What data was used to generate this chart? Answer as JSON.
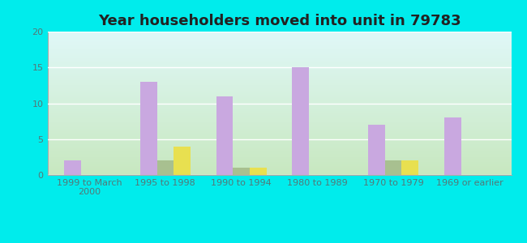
{
  "title": "Year householders moved into unit in 79783",
  "categories": [
    "1999 to March\n2000",
    "1995 to 1998",
    "1990 to 1994",
    "1980 to 1989",
    "1970 to 1979",
    "1969 or earlier"
  ],
  "white_non_hispanic": [
    2,
    13,
    11,
    15,
    7,
    8
  ],
  "other_race": [
    0,
    2,
    1,
    0,
    2,
    0
  ],
  "hispanic_or_latino": [
    0,
    4,
    1,
    0,
    2,
    0
  ],
  "white_color": "#c9a8e0",
  "other_color": "#a8c090",
  "hispanic_color": "#e8e050",
  "background_outer": "#00ecec",
  "bg_top": "#e0f8f8",
  "bg_bottom": "#c8e8c0",
  "grid_color": "#ffffff",
  "ylim": [
    0,
    20
  ],
  "yticks": [
    0,
    5,
    10,
    15,
    20
  ],
  "bar_width": 0.22,
  "title_fontsize": 13,
  "legend_fontsize": 9,
  "tick_fontsize": 8,
  "tick_color": "#557777"
}
